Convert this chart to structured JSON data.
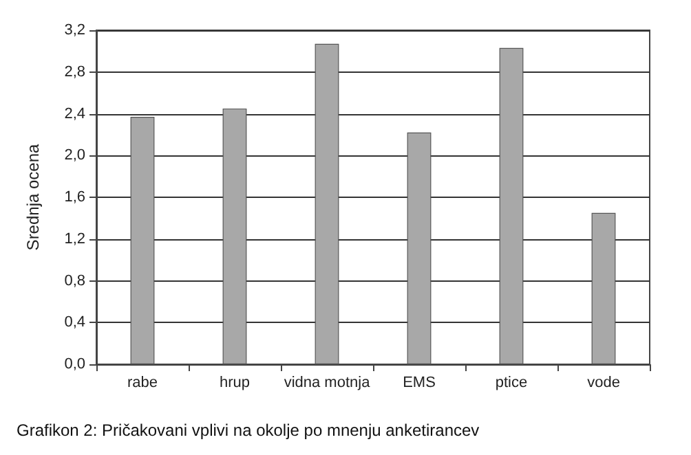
{
  "chart_data": {
    "type": "bar",
    "ylabel": "Srednja ocena",
    "categories": [
      "rabe",
      "hrup",
      "vidna motnja",
      "EMS",
      "ptice",
      "vode"
    ],
    "values": [
      2.37,
      2.45,
      3.07,
      2.22,
      3.03,
      1.45
    ],
    "color": "#a8a8a8",
    "ylim": [
      0,
      3.2
    ],
    "yticks": [
      {
        "value": 0,
        "label": "0,0"
      },
      {
        "value": 0.4,
        "label": "0,4"
      },
      {
        "value": 0.8,
        "label": "0,8"
      },
      {
        "value": 1.2,
        "label": "1,2"
      },
      {
        "value": 1.6,
        "label": "1,6"
      },
      {
        "value": 2.0,
        "label": "2,0"
      },
      {
        "value": 2.4,
        "label": "2,4"
      },
      {
        "value": 2.8,
        "label": "2,8"
      },
      {
        "value": 3.2,
        "label": "3,2"
      }
    ],
    "grid": "y",
    "annotations": [
      "Grafikon 2: Pričakovani vplivi na okolje po mnenju anketirancev"
    ]
  }
}
